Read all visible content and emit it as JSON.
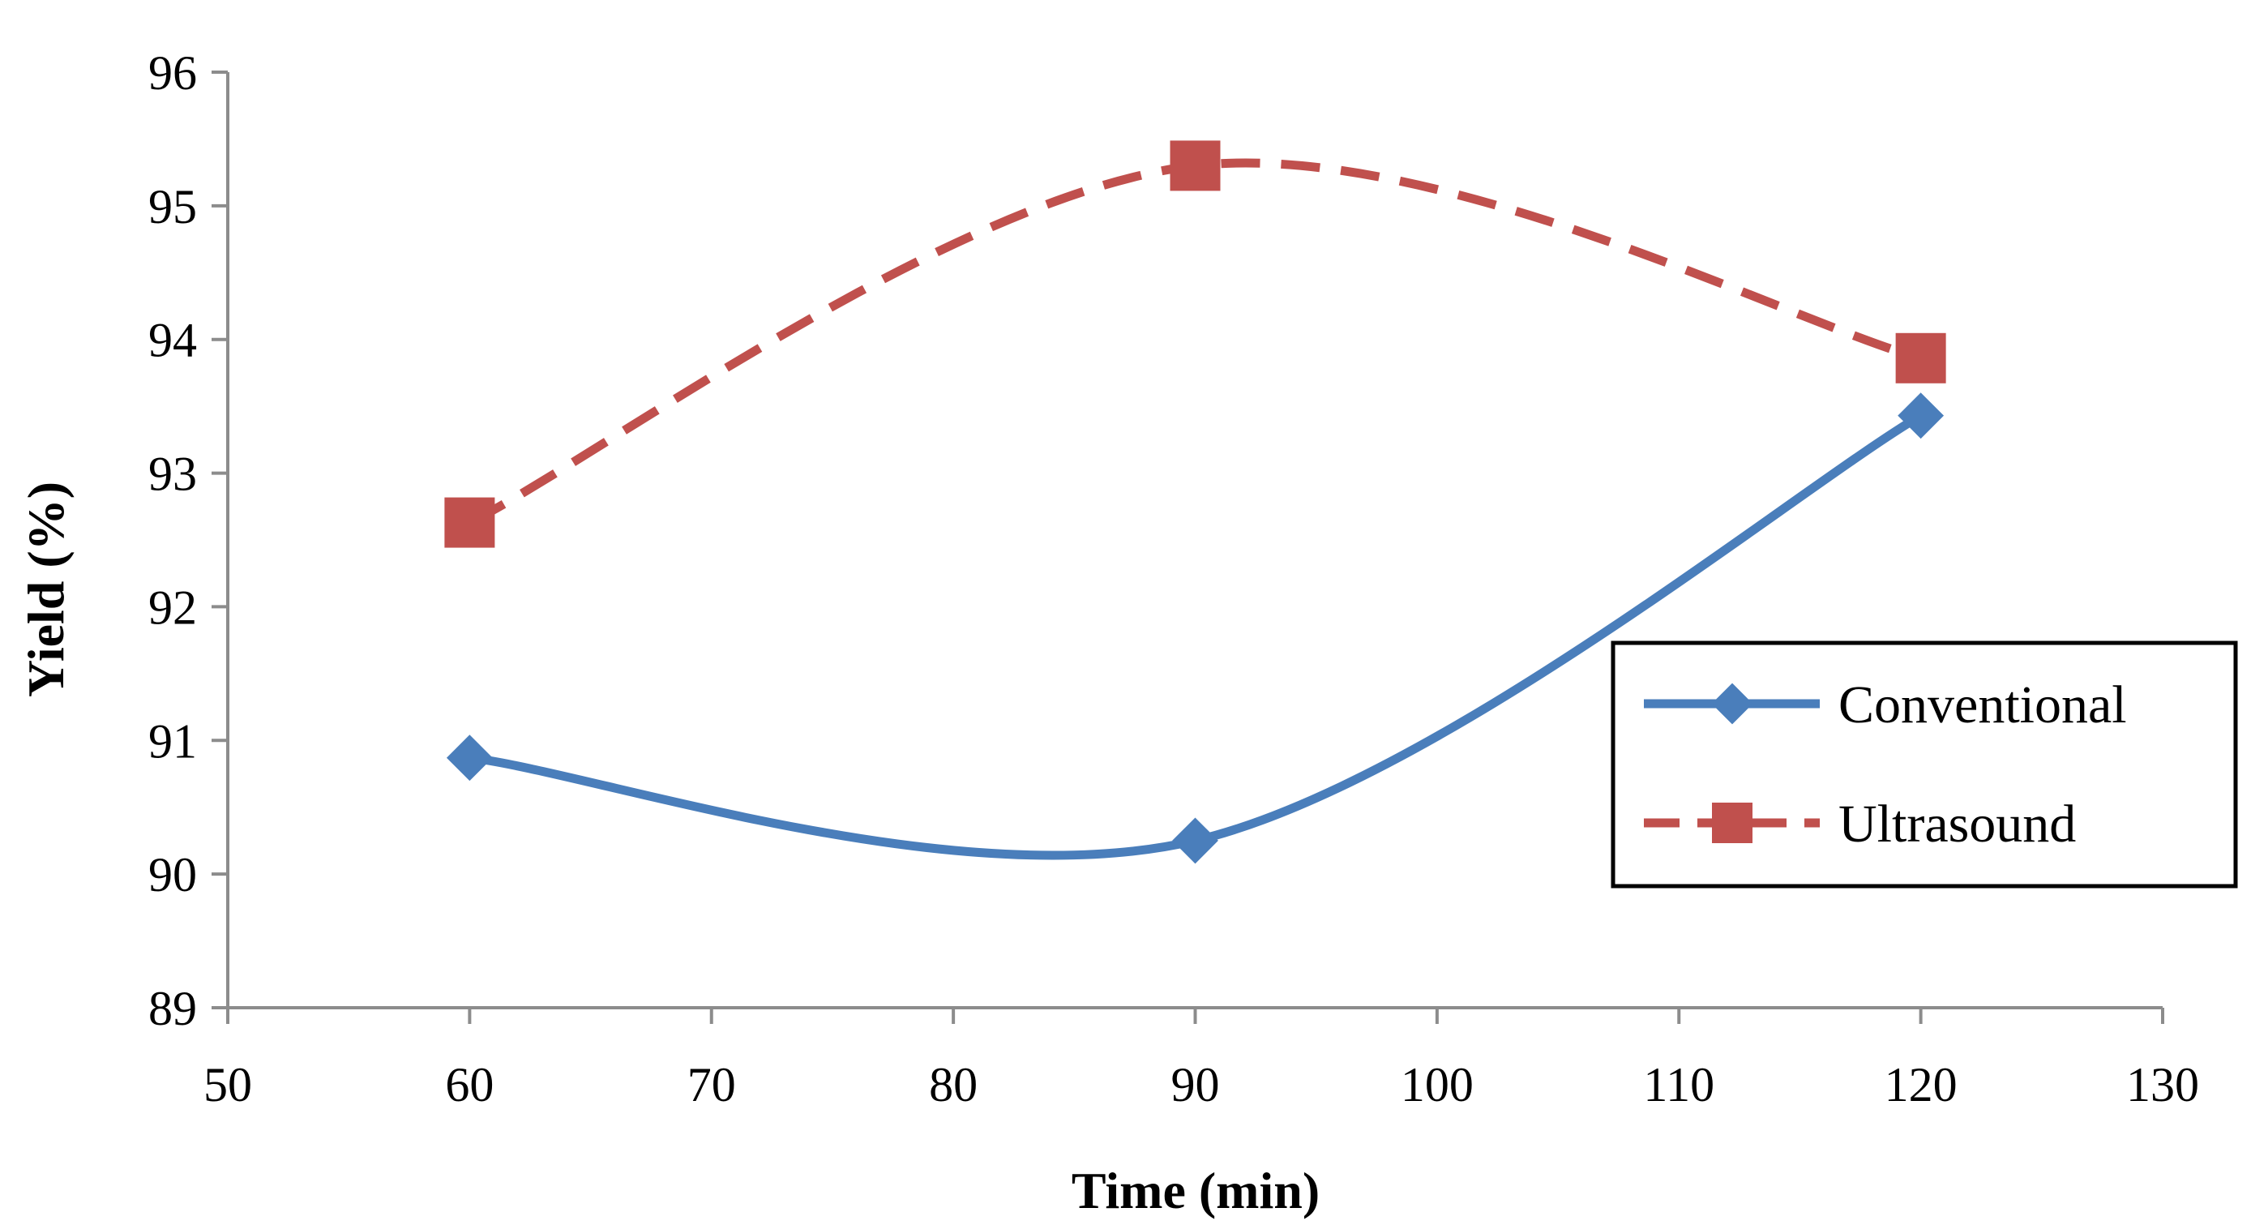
{
  "chart_data": {
    "type": "line",
    "title": "",
    "xlabel": "Time (min)",
    "ylabel": "Yield (%)",
    "xlim": [
      50,
      130
    ],
    "ylim": [
      89,
      96
    ],
    "x_ticks": [
      50,
      60,
      70,
      80,
      90,
      100,
      110,
      120,
      130
    ],
    "y_ticks": [
      89,
      90,
      91,
      92,
      93,
      94,
      95,
      96
    ],
    "grid": false,
    "legend_position": "right",
    "series": [
      {
        "name": "Conventional",
        "color": "#4a7ebb",
        "marker": "diamond",
        "line_style": "solid",
        "x": [
          60,
          90,
          120
        ],
        "values": [
          90.87,
          90.25,
          93.43
        ]
      },
      {
        "name": "Ultrasound",
        "color": "#c0504d",
        "marker": "square",
        "line_style": "dashed",
        "x": [
          60,
          90,
          120
        ],
        "values": [
          92.63,
          95.3,
          93.86
        ]
      }
    ]
  }
}
